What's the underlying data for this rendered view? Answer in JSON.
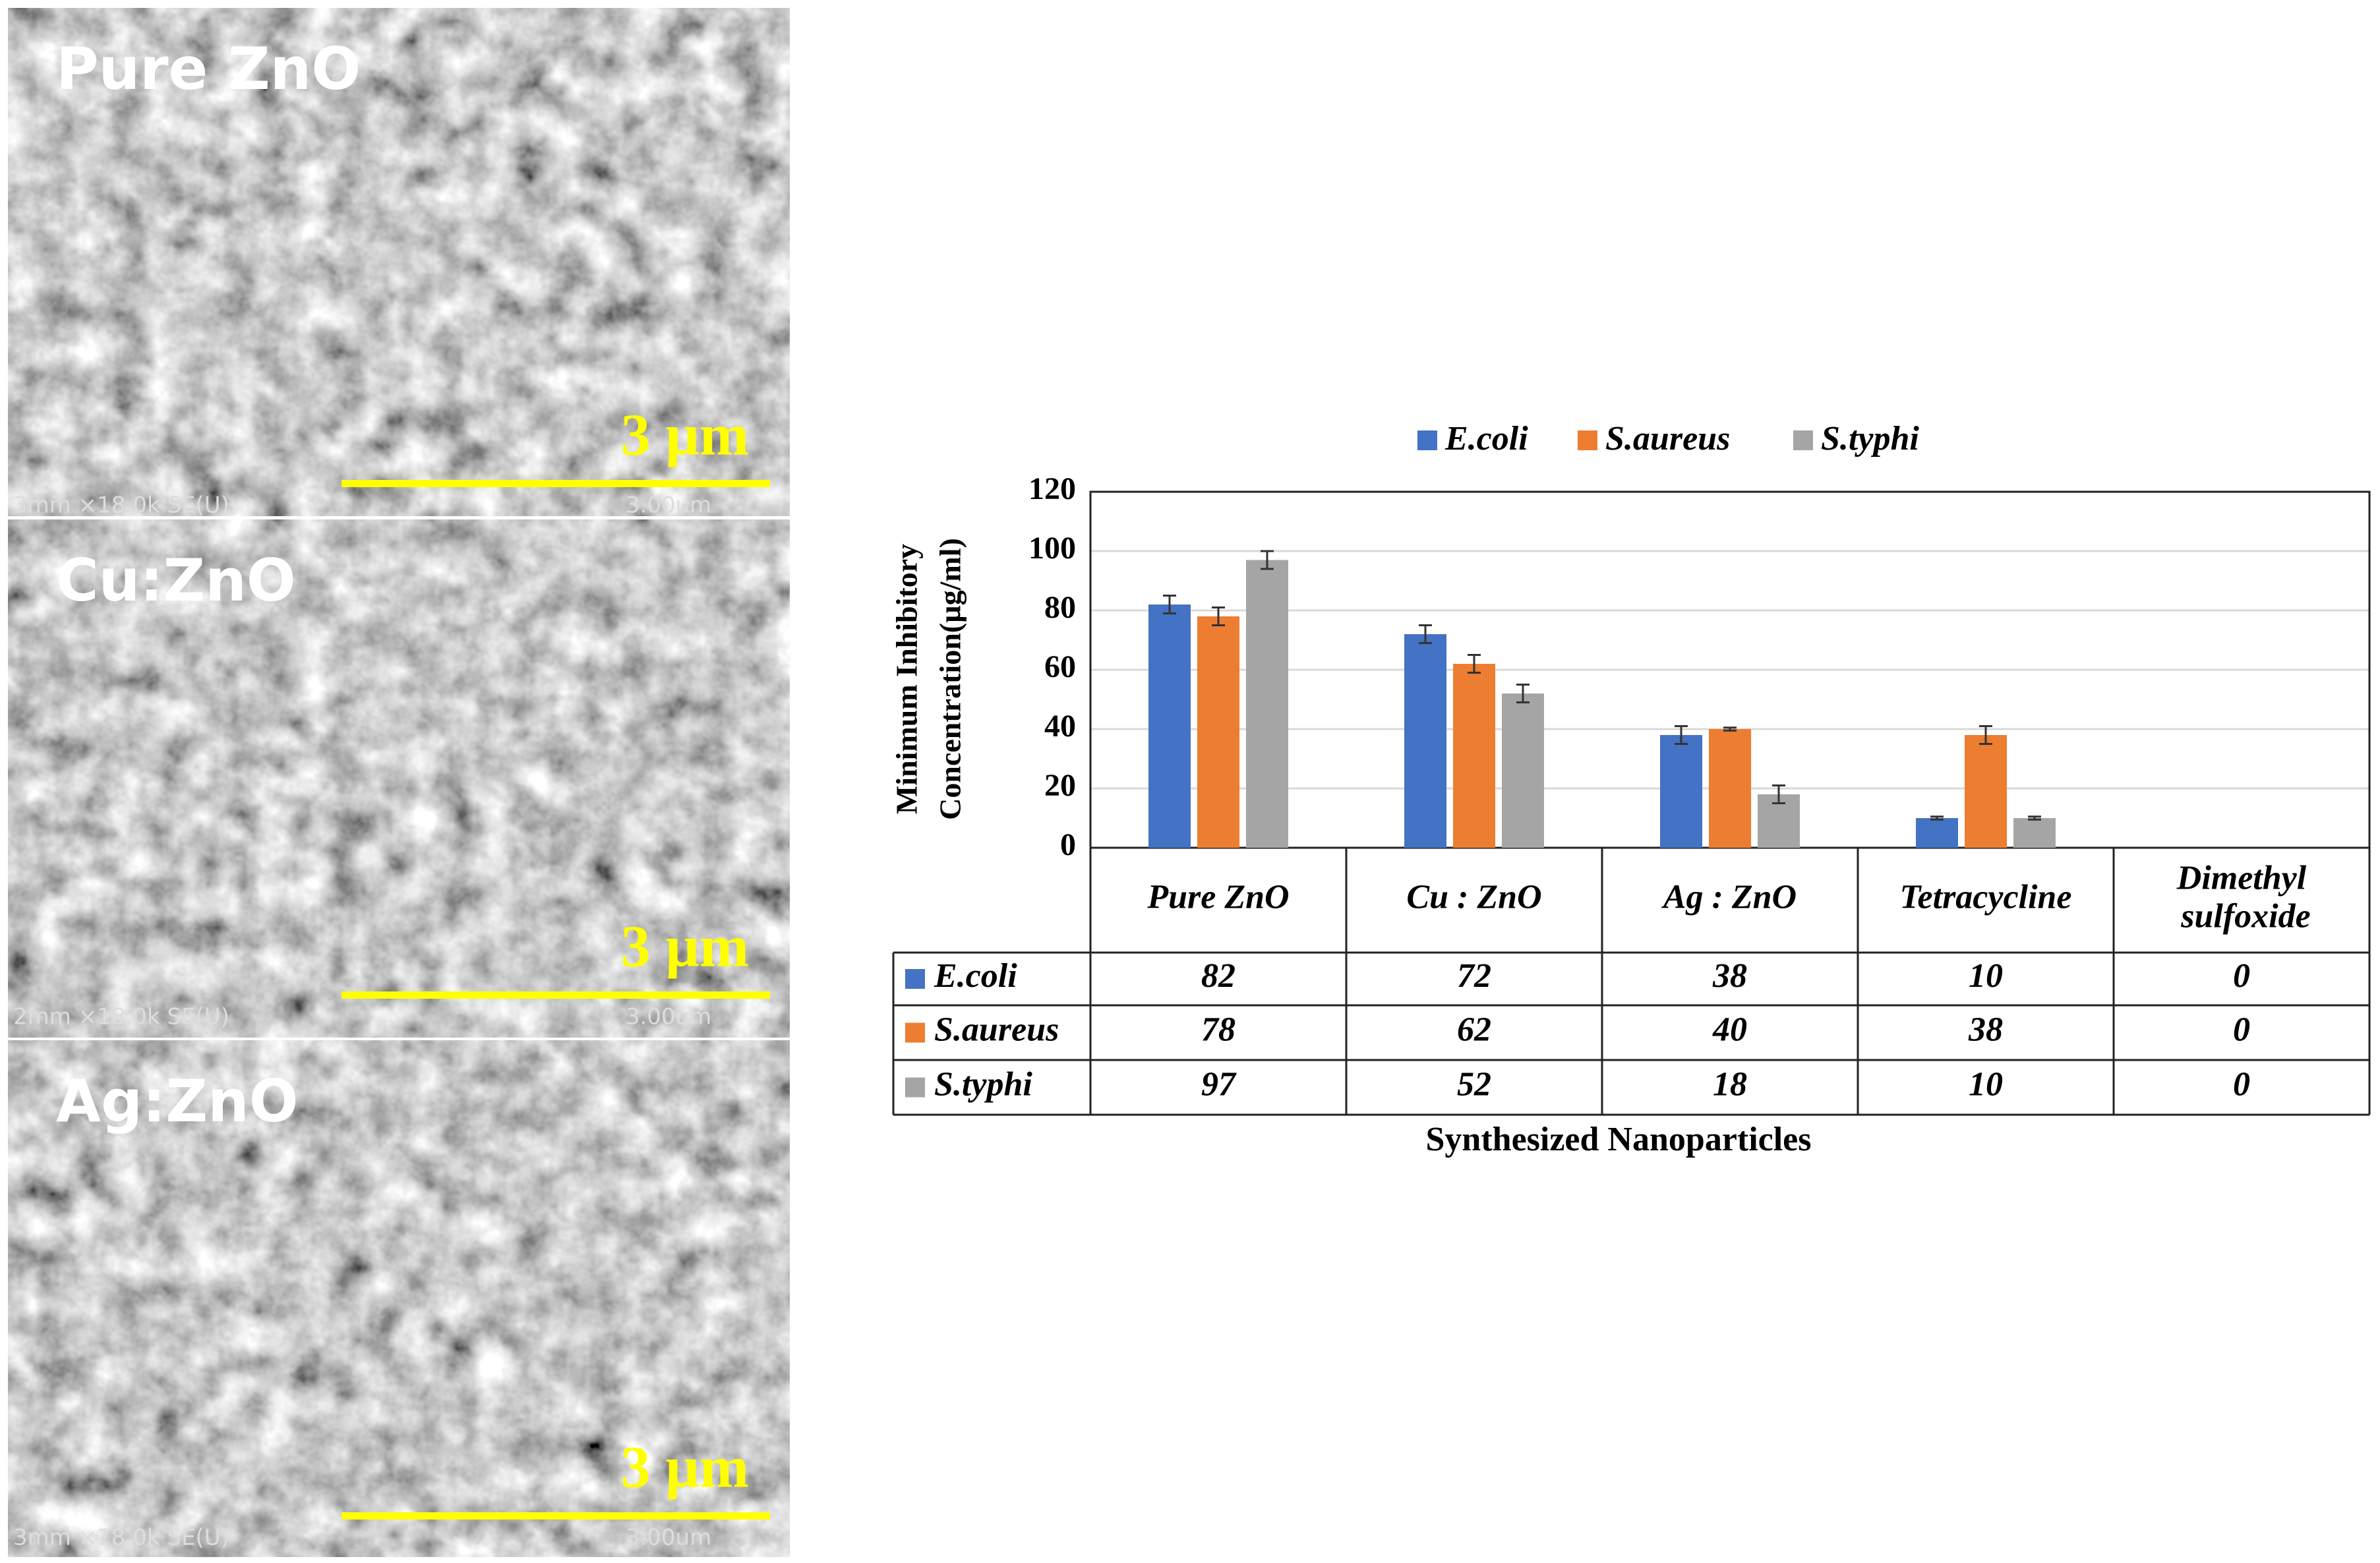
{
  "panels": [
    {
      "label": "Pure ZnO",
      "scale_text": "3 µm",
      "info": "3mm ×18.0k SE(U)",
      "bar_text": "3.00um"
    },
    {
      "label": "Cu:ZnO",
      "scale_text": "3 µm",
      "info": "2mm ×18.0k SE(U)",
      "bar_text": "3.00um"
    },
    {
      "label": "Ag:ZnO",
      "scale_text": "3 µm",
      "info": "3mm ×18.0k SE(U)",
      "bar_text": "3.00um"
    }
  ],
  "chart_data": {
    "type": "bar",
    "ylabel": [
      "Minimum Inhibitory",
      "Concentration(µg/ml)"
    ],
    "xlabel": "Synthesized Nanoparticles",
    "categories": [
      "Pure ZnO",
      "Cu : ZnO",
      "Ag : ZnO",
      "Tetracycline",
      "Dimethyl sulfoxide"
    ],
    "series": [
      {
        "name": "E.coli",
        "color": "#4472c4",
        "values": [
          82,
          72,
          38,
          10,
          0
        ],
        "errors": [
          3,
          3,
          3,
          0.5,
          null
        ]
      },
      {
        "name": "S.aureus",
        "color": "#ed7d31",
        "values": [
          78,
          62,
          40,
          38,
          0
        ],
        "errors": [
          3,
          3,
          0.5,
          3,
          null
        ]
      },
      {
        "name": "S.typhi",
        "color": "#a5a5a5",
        "values": [
          97,
          52,
          18,
          10,
          0
        ],
        "errors": [
          3,
          3,
          3,
          0.5,
          null
        ]
      }
    ],
    "ylim": [
      0,
      120
    ],
    "yticks": [
      0,
      20,
      40,
      60,
      80,
      100,
      120
    ],
    "grid": true,
    "legend": "top"
  }
}
